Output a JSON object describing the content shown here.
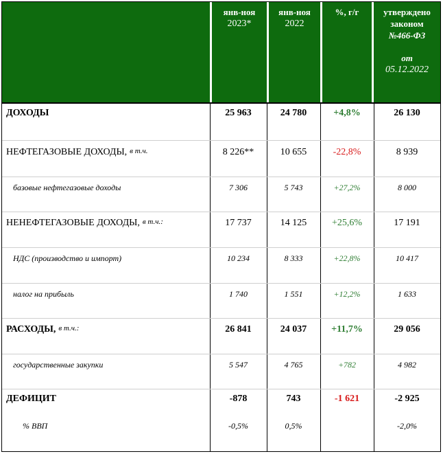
{
  "header": {
    "col_label": "",
    "col1_line1": "янв-ноя",
    "col1_line2": "2023*",
    "col2_line1": "янв-ноя",
    "col2_line2": "2022",
    "col3": "%, г/г",
    "col4_line1": "утверждено",
    "col4_line2": "законом",
    "col4_line3": "№466-ФЗ",
    "col4_line4": "от",
    "col4_line5": "05.12.2022"
  },
  "rows": [
    {
      "label": "ДОХОДЫ",
      "note": "",
      "v1": "25 963",
      "v2": "24 780",
      "v3": "+4,8%",
      "v4": "26 130"
    },
    {
      "label": "НЕФТЕГАЗОВЫЕ ДОХОДЫ,",
      "note": "в т.ч.",
      "v1": "8 226**",
      "v2": "10 655",
      "v3": "-22,8%",
      "v4": "8 939"
    },
    {
      "label": "базовые нефтегазовые доходы",
      "note": "",
      "v1": "7 306",
      "v2": "5 743",
      "v3": "+27,2%",
      "v4": "8 000"
    },
    {
      "label": "НЕНЕФТЕГАЗОВЫЕ ДОХОДЫ,",
      "note": "в т.ч.:",
      "v1": "17 737",
      "v2": "14 125",
      "v3": "+25,6%",
      "v4": "17 191"
    },
    {
      "label": "НДС (производство и импорт)",
      "note": "",
      "v1": "10 234",
      "v2": "8 333",
      "v3": "+22,8%",
      "v4": "10 417"
    },
    {
      "label": "налог на прибыль",
      "note": "",
      "v1": "1 740",
      "v2": "1 551",
      "v3": "+12,2%",
      "v4": "1 633"
    },
    {
      "label": "РАСХОДЫ,",
      "note": "в т.ч.:",
      "v1": "26 841",
      "v2": "24 037",
      "v3": "+11,7%",
      "v4": "29 056"
    },
    {
      "label": "государственные закупки",
      "note": "",
      "v1": "5 547",
      "v2": "4 765",
      "v3": "+782",
      "v4": "4 982"
    },
    {
      "label": "ДЕФИЦИТ",
      "note": "",
      "v1": "-878",
      "v2": "743",
      "v3": "-1 621",
      "v4": "-2 925"
    },
    {
      "label": "% ВВП",
      "note": "",
      "v1": "-0,5%",
      "v2": "0,5%",
      "v3": "",
      "v4": "-2,0%"
    }
  ],
  "colors": {
    "header_bg": "#0e6b0e",
    "positive": "#2e7d32",
    "negative": "#d81b1b"
  }
}
